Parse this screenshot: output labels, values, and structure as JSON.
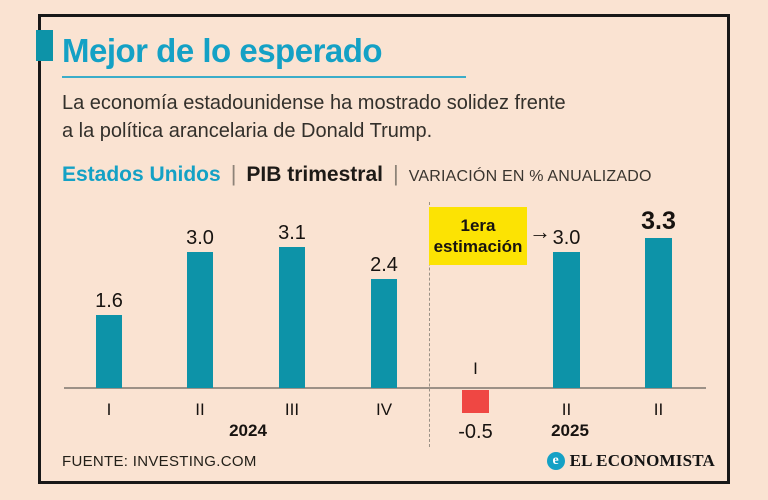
{
  "colors": {
    "background": "#fae3d2",
    "frame_border": "#181818",
    "accent_teal": "#14a1c5",
    "bar_teal": "#0d93a8",
    "bar_negative_red": "#ef4743",
    "highlight_yellow": "#fce303",
    "axis_gray": "#9c9187",
    "text_dark": "#1d1a17"
  },
  "header": {
    "title": "Mejor de lo esperado",
    "subtitle_line1": "La economía estadounidense ha mostrado solidez frente",
    "subtitle_line2": "a la política arancelaria de Donald Trump.",
    "kicker": {
      "country": "Estados Unidos",
      "separator1": "|",
      "subject": "PIB trimestral",
      "separator2": "|",
      "unit": "VARIACIÓN EN % ANUALIZADO"
    }
  },
  "chart_data": {
    "type": "bar",
    "title": "Estados Unidos | PIB trimestral",
    "ylabel": "Variación en % anualizado",
    "grid": "off",
    "legend": "none",
    "baseline": 0,
    "ylim": [
      -0.8,
      3.6
    ],
    "groups": [
      {
        "year": "2024",
        "quarters": [
          "I",
          "II",
          "III",
          "IV"
        ],
        "values": [
          1.6,
          3.0,
          3.1,
          2.4
        ]
      },
      {
        "year": "2025",
        "quarters": [
          "I",
          "II",
          "II"
        ],
        "values": [
          -0.5,
          3.0,
          3.3
        ]
      }
    ],
    "bars": [
      {
        "quarter": "I",
        "year": "2024",
        "value": 1.6,
        "display": "1.6"
      },
      {
        "quarter": "II",
        "year": "2024",
        "value": 3.0,
        "display": "3.0"
      },
      {
        "quarter": "III",
        "year": "2024",
        "value": 3.1,
        "display": "3.1"
      },
      {
        "quarter": "IV",
        "year": "2024",
        "value": 2.4,
        "display": "2.4"
      },
      {
        "quarter": "I",
        "year": "2025",
        "value": -0.5,
        "display": "-0.5"
      },
      {
        "quarter": "II",
        "year": "2025",
        "value": 3.0,
        "display": "3.0"
      },
      {
        "quarter": "II",
        "year": "2025",
        "value": 3.3,
        "display": "3.3",
        "emphasis": true
      }
    ],
    "annotation": {
      "line1": "1era",
      "line2": "estimación",
      "full": "1era estimación",
      "arrow_glyph": "→",
      "points_to": "2025 II = 3.0"
    }
  },
  "footer": {
    "source": "FUENTE: INVESTING.COM",
    "brand": "EL ECONOMISTA",
    "brand_icon_letter": "e"
  }
}
